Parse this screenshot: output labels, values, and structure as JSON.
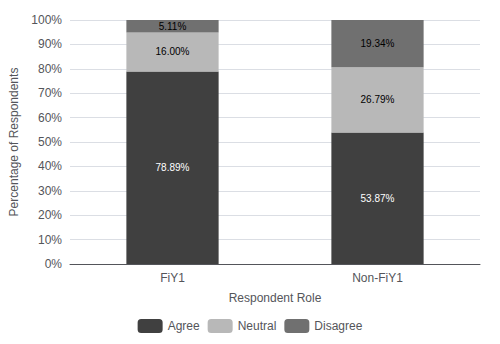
{
  "chart_data": {
    "type": "bar",
    "stacked": true,
    "xlabel": "Respondent Role",
    "ylabel": "Percentage of Respondents",
    "categories": [
      "FiY1",
      "Non-FiY1"
    ],
    "series": [
      {
        "name": "Agree",
        "color": "#404040",
        "values": [
          78.89,
          53.87
        ],
        "value_labels": [
          "78.89%",
          "53.87%"
        ]
      },
      {
        "name": "Neutral",
        "color": "#b8b8b8",
        "values": [
          16.0,
          26.79
        ],
        "value_labels": [
          "16.00%",
          "26.79%"
        ]
      },
      {
        "name": "Disagree",
        "color": "#707070",
        "values": [
          5.11,
          19.34
        ],
        "value_labels": [
          "5.11%",
          "19.34%"
        ]
      }
    ],
    "ylim": [
      0,
      100
    ],
    "yticks": [
      {
        "value": 0,
        "label": "0%"
      },
      {
        "value": 10,
        "label": "10%"
      },
      {
        "value": 20,
        "label": "20%"
      },
      {
        "value": 30,
        "label": "30%"
      },
      {
        "value": 40,
        "label": "40%"
      },
      {
        "value": 50,
        "label": "50%"
      },
      {
        "value": 60,
        "label": "60%"
      },
      {
        "value": 70,
        "label": "70%"
      },
      {
        "value": 80,
        "label": "80%"
      },
      {
        "value": 90,
        "label": "90%"
      },
      {
        "value": 100,
        "label": "100%"
      }
    ],
    "grid": true,
    "legend": "bottom",
    "data_labels": true
  }
}
